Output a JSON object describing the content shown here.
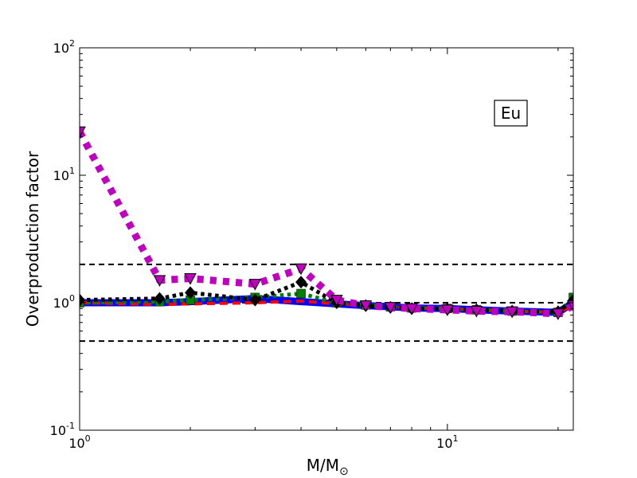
{
  "chart_data": {
    "type": "line",
    "xscale": "log",
    "yscale": "log",
    "xlim": [
      1,
      22
    ],
    "ylim": [
      0.1,
      100
    ],
    "xlabel": "M/M",
    "xlabel_sub": "⊙",
    "ylabel": "Overproduction factor",
    "x_ticks": [
      {
        "value": 1,
        "base": "10",
        "exp": "0"
      },
      {
        "value": 10,
        "base": "10",
        "exp": "1"
      }
    ],
    "y_ticks": [
      {
        "value": 0.1,
        "base": "10",
        "exp": "-1"
      },
      {
        "value": 1,
        "base": "10",
        "exp": "0"
      },
      {
        "value": 10,
        "base": "10",
        "exp": "1"
      },
      {
        "value": 100,
        "base": "10",
        "exp": "2"
      }
    ],
    "annotation": "Eu",
    "reference_lines": [
      2.0,
      1.0,
      0.5
    ],
    "grid": false,
    "series": [
      {
        "color": "#0000ff",
        "dash": "solid",
        "width": 9,
        "marker": "none",
        "x": [
          1,
          1.65,
          2,
          3,
          4,
          5,
          6,
          7,
          8,
          10,
          12,
          15,
          20,
          22
        ],
        "y": [
          1.0,
          1.0,
          1.02,
          1.08,
          1.02,
          0.98,
          0.95,
          0.93,
          0.91,
          0.9,
          0.88,
          0.86,
          0.84,
          1.0
        ]
      },
      {
        "color": "#ff0000",
        "dash": "dashed",
        "width": 4,
        "marker": "none",
        "x": [
          1,
          1.65,
          2,
          3,
          4,
          5,
          6,
          7,
          8,
          10,
          12,
          15,
          20,
          22
        ],
        "y": [
          1.0,
          0.97,
          0.98,
          1.0,
          1.03,
          0.98,
          0.95,
          0.93,
          0.91,
          0.9,
          0.88,
          0.86,
          0.84,
          0.95
        ]
      },
      {
        "color": "#008000",
        "dash": "dotted",
        "width": 5,
        "marker": "square",
        "x": [
          1,
          1.65,
          2,
          3,
          4,
          5,
          6,
          7,
          8,
          10,
          12,
          15,
          20,
          22
        ],
        "y": [
          1.0,
          1.02,
          1.05,
          1.1,
          1.18,
          1.0,
          0.96,
          0.93,
          0.91,
          0.9,
          0.88,
          0.86,
          0.84,
          1.1
        ]
      },
      {
        "color": "#000000",
        "dash": "dotted",
        "width": 5,
        "marker": "diamond",
        "x": [
          1,
          1.65,
          2,
          3,
          4,
          5,
          6,
          7,
          8,
          10,
          12,
          15,
          20,
          22
        ],
        "y": [
          1.05,
          1.08,
          1.2,
          1.05,
          1.45,
          1.0,
          0.95,
          0.92,
          0.9,
          0.89,
          0.88,
          0.86,
          0.85,
          1.05
        ]
      },
      {
        "color": "#bf00bf",
        "dash": "dotted",
        "width": 9,
        "marker": "triangle-down",
        "x": [
          1,
          1.65,
          2,
          3,
          4,
          5,
          6,
          7,
          8,
          10,
          12,
          15,
          20,
          22
        ],
        "y": [
          22,
          1.5,
          1.55,
          1.4,
          1.85,
          1.05,
          0.95,
          0.92,
          0.9,
          0.88,
          0.86,
          0.85,
          0.82,
          0.95
        ]
      }
    ]
  }
}
